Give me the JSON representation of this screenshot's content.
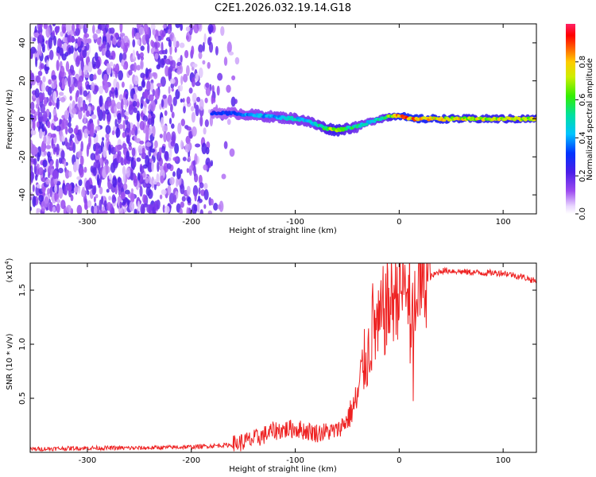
{
  "title": "C2E1.2026.032.19.14.G18",
  "chart_data": [
    {
      "type": "heatmap",
      "title": "C2E1.2026.032.19.14.G18",
      "xlabel": "Height of straight line (km)",
      "ylabel": "Frequency (Hz)",
      "xlim": [
        -355,
        132
      ],
      "ylim": [
        -50,
        50
      ],
      "xticks": [
        "-300",
        "-200",
        "-100",
        "0",
        "100"
      ],
      "xtick_values": [
        -300,
        -200,
        -100,
        0,
        100
      ],
      "yticks": [
        "-40",
        "-20",
        "0",
        "20",
        "40"
      ],
      "ytick_values": [
        -40,
        -20,
        0,
        20,
        40
      ],
      "colorbar": {
        "label": "Normalized spectral amplitude",
        "ticks": [
          "0.0",
          "0.2",
          "0.4",
          "0.6",
          "0.8"
        ],
        "tick_values": [
          0.0,
          0.2,
          0.4,
          0.6,
          0.8
        ],
        "range": [
          0,
          1
        ]
      },
      "ridge": {
        "x": [
          -180,
          -160,
          -140,
          -120,
          -100,
          -90,
          -80,
          -70,
          -60,
          -50,
          -40,
          -30,
          -20,
          -10,
          0,
          10,
          30,
          60,
          100,
          132
        ],
        "freq": [
          3,
          3,
          2,
          1,
          0,
          -1,
          -3,
          -5,
          -6,
          -5,
          -4,
          -2,
          0,
          1,
          2,
          0,
          0,
          0,
          0,
          0
        ],
        "amplitude": [
          0.28,
          0.32,
          0.4,
          0.42,
          0.45,
          0.45,
          0.48,
          0.6,
          0.7,
          0.55,
          0.5,
          0.45,
          0.5,
          0.6,
          0.8,
          0.82,
          0.78,
          0.72,
          0.7,
          0.72
        ]
      },
      "noise_region_x": [
        -355,
        -150
      ],
      "noise_amplitude": 0.15
    },
    {
      "type": "line",
      "xlabel": "Height of straight line (km)",
      "ylabel": "SNR (10 * v/v)",
      "y_multiplier": "(x10",
      "y_multiplier_exp": "4",
      "y_multiplier_close": ")",
      "xlim": [
        -355,
        132
      ],
      "ylim": [
        0,
        1.75
      ],
      "xticks": [
        "-300",
        "-200",
        "-100",
        "0",
        "100"
      ],
      "xtick_values": [
        -300,
        -200,
        -100,
        0,
        100
      ],
      "yticks": [
        "0.5",
        "1.0",
        "1.5"
      ],
      "ytick_values": [
        0.5,
        1.0,
        1.5
      ],
      "series": [
        {
          "name": "SNR",
          "color": "#ee2222",
          "x": [
            -355,
            -300,
            -250,
            -200,
            -160,
            -140,
            -120,
            -100,
            -80,
            -60,
            -50,
            -40,
            -35,
            -30,
            -25,
            -20,
            -15,
            -10,
            -5,
            0,
            10,
            20,
            30,
            40,
            50,
            60,
            80,
            100,
            120,
            132
          ],
          "y": [
            0.03,
            0.04,
            0.04,
            0.05,
            0.07,
            0.12,
            0.2,
            0.22,
            0.18,
            0.2,
            0.3,
            0.5,
            0.8,
            0.9,
            1.2,
            1.1,
            1.3,
            1.35,
            1.45,
            1.5,
            1.5,
            1.55,
            1.62,
            1.68,
            1.68,
            1.67,
            1.66,
            1.66,
            1.62,
            1.58
          ]
        }
      ]
    }
  ]
}
